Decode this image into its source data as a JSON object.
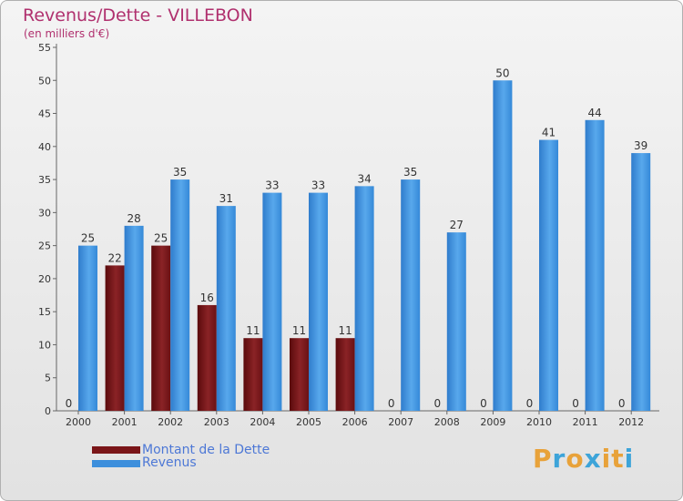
{
  "chart_data": {
    "type": "bar",
    "title": "Revenus/Dette - VILLEBON",
    "subtitle": "(en milliers d'€)",
    "xlabel": "",
    "ylabel": "",
    "ylim": [
      0,
      55
    ],
    "yticks": [
      0,
      5,
      10,
      15,
      20,
      25,
      30,
      35,
      40,
      45,
      50,
      55
    ],
    "grid": false,
    "categories": [
      "2000",
      "2001",
      "2002",
      "2003",
      "2004",
      "2005",
      "2006",
      "2007",
      "2008",
      "2009",
      "2010",
      "2011",
      "2012"
    ],
    "series": [
      {
        "name": "Montant de la Dette",
        "color": "#7a1518",
        "values": [
          0,
          22,
          25,
          16,
          11,
          11,
          11,
          0,
          0,
          0,
          0,
          0,
          0
        ]
      },
      {
        "name": "Revenus",
        "color": "#3d8fdc",
        "values": [
          25,
          28,
          35,
          31,
          33,
          33,
          34,
          35,
          27,
          50,
          41,
          44,
          39
        ]
      }
    ],
    "legend_position": "bottom-left"
  },
  "logo": {
    "letters": [
      "P",
      "r",
      "o",
      "x",
      "i",
      "t",
      "i"
    ],
    "colors": [
      "#e8a23a",
      "#3da4d9",
      "#e8a23a",
      "#3da4d9",
      "#e8a23a",
      "#e8a23a",
      "#3da4d9"
    ]
  }
}
